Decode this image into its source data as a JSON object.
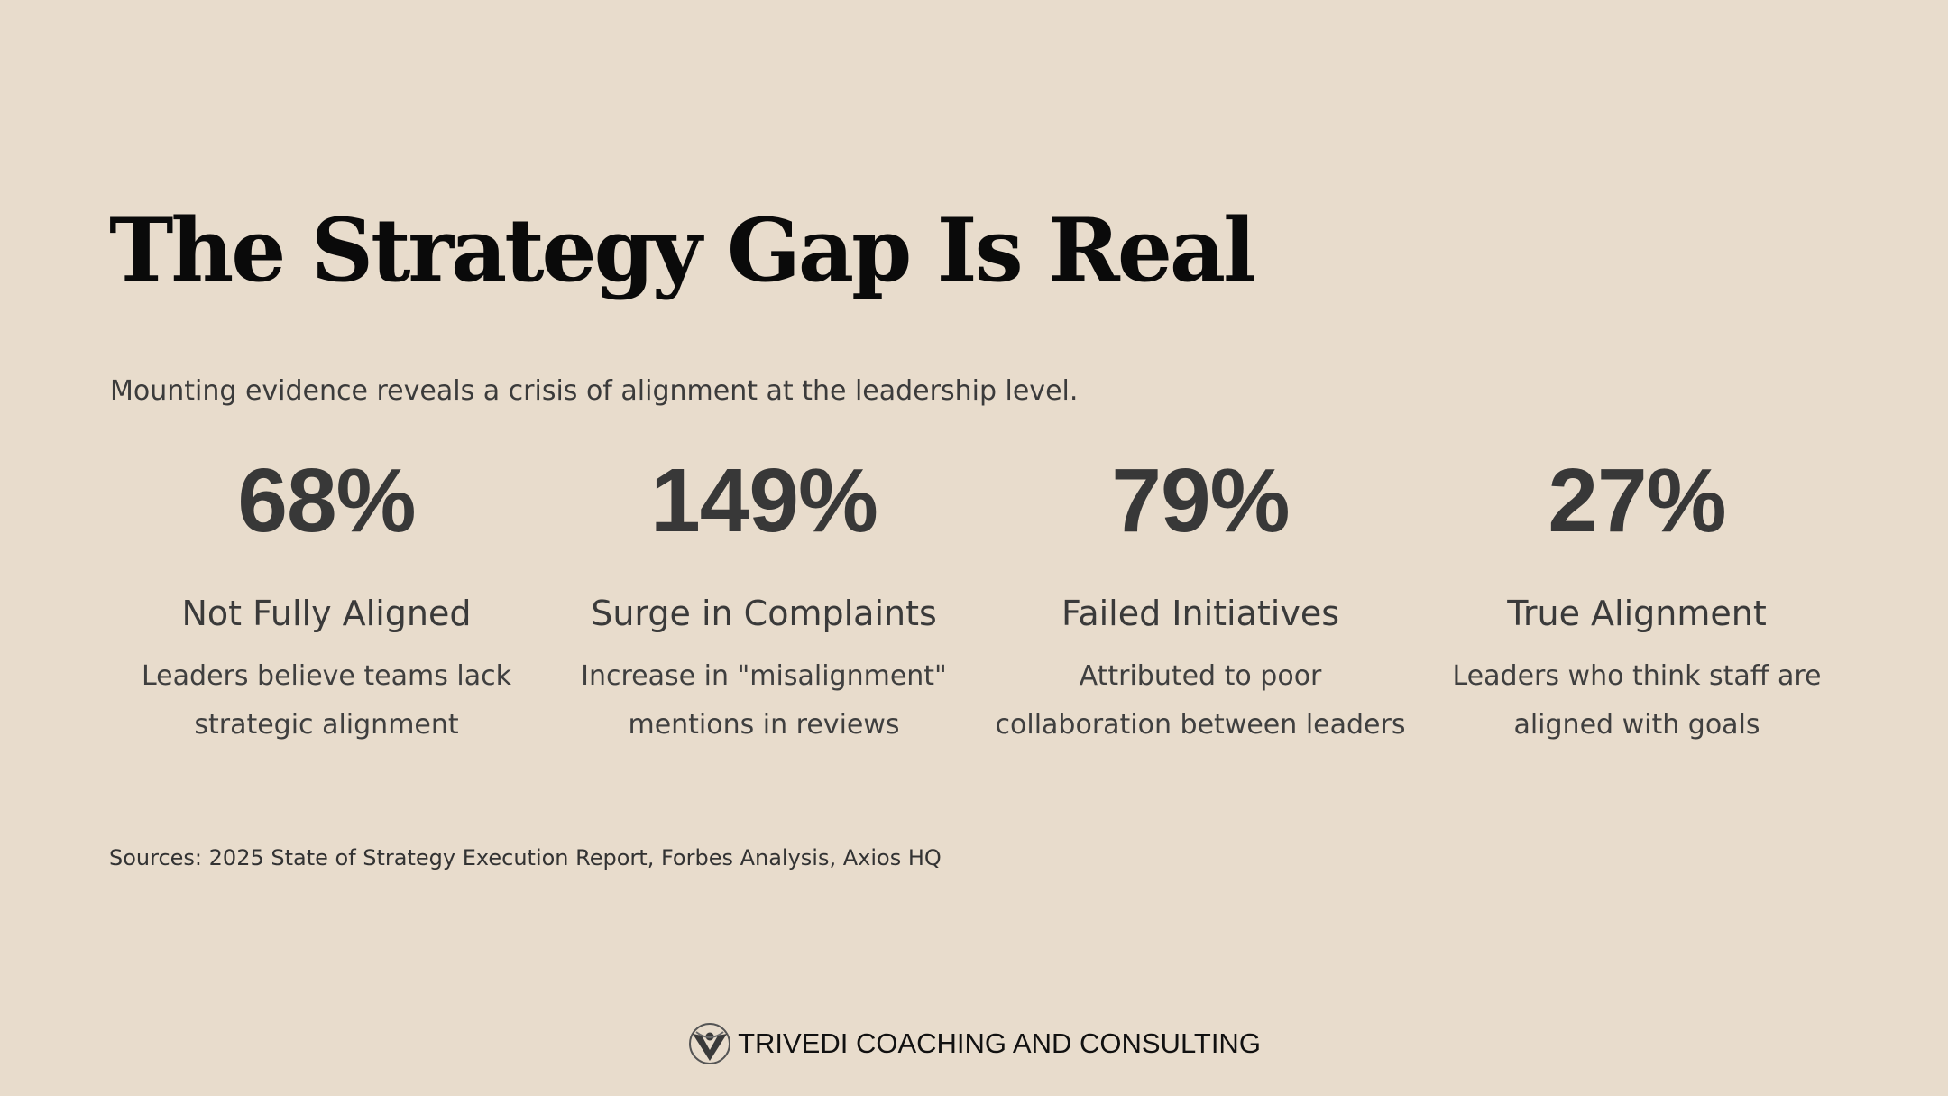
{
  "slide": {
    "title": "The Strategy Gap Is Real",
    "subtitle": "Mounting evidence reveals a crisis of alignment at the leadership level.",
    "stats": [
      {
        "value": "68%",
        "label": "Not Fully Aligned",
        "description": "Leaders believe teams lack strategic alignment"
      },
      {
        "value": "149%",
        "label": "Surge in Complaints",
        "description": "Increase in \"misalignment\" mentions in reviews"
      },
      {
        "value": "79%",
        "label": "Failed Initiatives",
        "description": "Attributed to poor collaboration between leaders"
      },
      {
        "value": "27%",
        "label": "True Alignment",
        "description": "Leaders who think staff are aligned with goals"
      }
    ],
    "sources": "Sources: 2025 State of Strategy Execution Report, Forbes Analysis, Axios HQ"
  },
  "footer": {
    "logo_icon": "person-v-logo-icon",
    "brand_name": "TRIVEDI COACHING AND CONSULTING"
  },
  "colors": {
    "background": "#e8dccc",
    "title": "#0a0a0a",
    "text": "#3a3a3a"
  }
}
